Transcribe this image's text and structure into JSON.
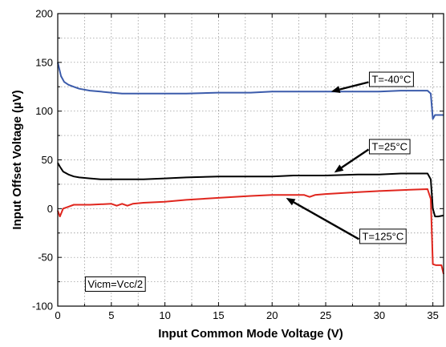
{
  "chart_data": {
    "type": "line",
    "title": "",
    "xlabel": "Input Common Mode Voltage (V)",
    "ylabel": "Input Offset Voltage (µV)",
    "xlim": [
      0,
      36
    ],
    "ylim": [
      -100,
      200
    ],
    "xticks": [
      "0",
      "5",
      "10",
      "15",
      "20",
      "25",
      "30",
      "35"
    ],
    "yticks": [
      "200",
      "150",
      "100",
      "50",
      "0",
      "-50",
      "-100"
    ],
    "grid": "dotted",
    "series": [
      {
        "name": "T=-40°C",
        "color": "#3b5bab",
        "x": [
          0,
          0.15,
          0.3,
          0.6,
          1,
          1.5,
          2,
          3,
          4,
          5,
          6,
          8,
          10,
          12,
          15,
          18,
          20,
          22,
          25,
          28,
          30,
          32,
          34.5,
          34.8,
          35.0,
          35.2,
          35.4,
          36
        ],
        "y": [
          150,
          143,
          136,
          130,
          127,
          125,
          123,
          121,
          120,
          119,
          118,
          118,
          118,
          118,
          119,
          119,
          120,
          120,
          120,
          120,
          120,
          121,
          121,
          118,
          92,
          96,
          96,
          96
        ]
      },
      {
        "name": "T=25°C",
        "color": "#000000",
        "x": [
          0,
          0.2,
          0.5,
          1,
          1.5,
          2,
          3,
          4,
          5,
          6,
          8,
          10,
          12,
          15,
          18,
          20,
          22,
          25,
          28,
          30,
          32,
          34.5,
          34.8,
          35.0,
          35.2,
          35.5,
          36
        ],
        "y": [
          47,
          43,
          38,
          35,
          33,
          32,
          31,
          30,
          30,
          30,
          30,
          31,
          32,
          33,
          33,
          33,
          34,
          34,
          35,
          35,
          36,
          36,
          30,
          0,
          -8,
          -8,
          -7
        ]
      },
      {
        "name": "T=125°C",
        "color": "#e0261e",
        "x": [
          0,
          0.2,
          0.5,
          1,
          1.5,
          2,
          3,
          5,
          5.5,
          6,
          6.5,
          7,
          8,
          10,
          12,
          15,
          18,
          20,
          22,
          23,
          23.5,
          24,
          25,
          28,
          30,
          32,
          34.5,
          34.8,
          35.0,
          35.3,
          35.8,
          36
        ],
        "y": [
          -2,
          -8,
          0,
          2,
          4,
          4,
          4,
          5,
          3,
          5,
          3,
          5,
          6,
          7,
          9,
          11,
          13,
          14,
          14,
          14,
          12,
          14,
          15,
          17,
          18,
          19,
          20,
          10,
          -57,
          -58,
          -58,
          -67
        ]
      }
    ],
    "annotations": [
      {
        "text": "T=-40°C",
        "series": 0,
        "label_at": [
          29.3,
          133
        ],
        "arrow_to": [
          25.5,
          120
        ]
      },
      {
        "text": "T=25°C",
        "series": 1,
        "label_at": [
          29.3,
          64
        ],
        "arrow_to": [
          25.8,
          37
        ]
      },
      {
        "text": "T=125°C",
        "series": 2,
        "label_at": [
          28.4,
          -28
        ],
        "arrow_to": [
          21.3,
          11
        ]
      },
      {
        "text": "Vicm=Vcc/2",
        "series": null,
        "label_at": [
          2.8,
          -77
        ],
        "arrow_to": null
      }
    ]
  }
}
